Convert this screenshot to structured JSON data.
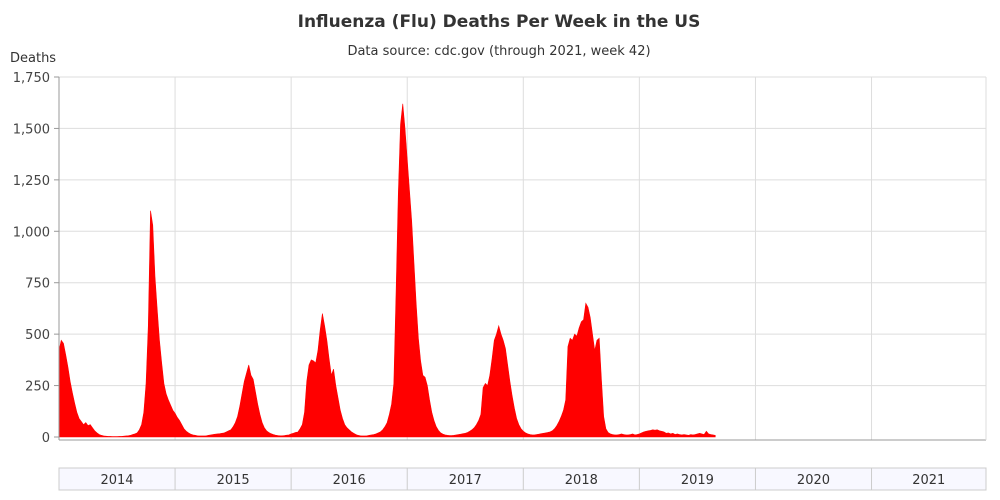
{
  "chart_data": {
    "type": "area",
    "title": "Influenza (Flu) Deaths Per Week in the US",
    "subtitle": "Data source: cdc.gov (through 2021, week 42)",
    "xlabel": "",
    "ylabel": "Deaths",
    "ylim": [
      0,
      1750
    ],
    "yticks": [
      0,
      250,
      500,
      750,
      1000,
      1250,
      1500,
      1750
    ],
    "ytick_labels": [
      "0",
      "250",
      "500",
      "750",
      "1,000",
      "1,250",
      "1,500",
      "1,750"
    ],
    "x_unit": "week",
    "years": [
      "2014",
      "2015",
      "2016",
      "2017",
      "2018",
      "2019",
      "2020",
      "2021"
    ],
    "grid": {
      "horizontal": true,
      "vertical": true
    },
    "series_color": "#ff0000",
    "points": [
      [
        0,
        420
      ],
      [
        1,
        470
      ],
      [
        2,
        455
      ],
      [
        3,
        400
      ],
      [
        4,
        340
      ],
      [
        5,
        270
      ],
      [
        6,
        215
      ],
      [
        7,
        165
      ],
      [
        8,
        120
      ],
      [
        9,
        90
      ],
      [
        10,
        75
      ],
      [
        11,
        60
      ],
      [
        12,
        70
      ],
      [
        13,
        55
      ],
      [
        14,
        60
      ],
      [
        15,
        45
      ],
      [
        16,
        30
      ],
      [
        17,
        20
      ],
      [
        18,
        12
      ],
      [
        19,
        8
      ],
      [
        20,
        5
      ],
      [
        21,
        4
      ],
      [
        22,
        3
      ],
      [
        23,
        3
      ],
      [
        24,
        2
      ],
      [
        25,
        2
      ],
      [
        26,
        2
      ],
      [
        27,
        3
      ],
      [
        28,
        3
      ],
      [
        29,
        4
      ],
      [
        30,
        5
      ],
      [
        31,
        6
      ],
      [
        32,
        8
      ],
      [
        33,
        12
      ],
      [
        34,
        15
      ],
      [
        35,
        20
      ],
      [
        36,
        35
      ],
      [
        37,
        60
      ],
      [
        38,
        120
      ],
      [
        39,
        260
      ],
      [
        40,
        540
      ],
      [
        41,
        1100
      ],
      [
        42,
        1030
      ],
      [
        43,
        780
      ],
      [
        44,
        620
      ],
      [
        45,
        470
      ],
      [
        46,
        360
      ],
      [
        47,
        260
      ],
      [
        48,
        210
      ],
      [
        49,
        180
      ],
      [
        50,
        155
      ],
      [
        51,
        130
      ],
      [
        52,
        115
      ],
      [
        53,
        95
      ],
      [
        54,
        80
      ],
      [
        55,
        60
      ],
      [
        56,
        40
      ],
      [
        57,
        28
      ],
      [
        58,
        20
      ],
      [
        59,
        14
      ],
      [
        60,
        10
      ],
      [
        61,
        8
      ],
      [
        62,
        6
      ],
      [
        63,
        5
      ],
      [
        64,
        5
      ],
      [
        65,
        5
      ],
      [
        66,
        6
      ],
      [
        67,
        8
      ],
      [
        68,
        10
      ],
      [
        69,
        12
      ],
      [
        70,
        14
      ],
      [
        71,
        15
      ],
      [
        72,
        16
      ],
      [
        73,
        18
      ],
      [
        74,
        20
      ],
      [
        75,
        25
      ],
      [
        76,
        30
      ],
      [
        77,
        35
      ],
      [
        78,
        50
      ],
      [
        79,
        70
      ],
      [
        80,
        100
      ],
      [
        81,
        150
      ],
      [
        82,
        210
      ],
      [
        83,
        270
      ],
      [
        84,
        310
      ],
      [
        85,
        350
      ],
      [
        86,
        300
      ],
      [
        87,
        280
      ],
      [
        88,
        220
      ],
      [
        89,
        160
      ],
      [
        90,
        110
      ],
      [
        91,
        70
      ],
      [
        92,
        45
      ],
      [
        93,
        30
      ],
      [
        94,
        22
      ],
      [
        95,
        16
      ],
      [
        96,
        12
      ],
      [
        97,
        9
      ],
      [
        98,
        7
      ],
      [
        99,
        6
      ],
      [
        100,
        6
      ],
      [
        101,
        7
      ],
      [
        102,
        9
      ],
      [
        103,
        10
      ],
      [
        104,
        15
      ],
      [
        105,
        18
      ],
      [
        106,
        22
      ],
      [
        107,
        24
      ],
      [
        108,
        40
      ],
      [
        109,
        60
      ],
      [
        110,
        120
      ],
      [
        111,
        270
      ],
      [
        112,
        350
      ],
      [
        113,
        375
      ],
      [
        114,
        370
      ],
      [
        115,
        360
      ],
      [
        116,
        420
      ],
      [
        117,
        520
      ],
      [
        118,
        600
      ],
      [
        119,
        540
      ],
      [
        120,
        470
      ],
      [
        121,
        380
      ],
      [
        122,
        300
      ],
      [
        123,
        330
      ],
      [
        124,
        250
      ],
      [
        125,
        190
      ],
      [
        126,
        130
      ],
      [
        127,
        90
      ],
      [
        128,
        60
      ],
      [
        129,
        45
      ],
      [
        130,
        35
      ],
      [
        131,
        25
      ],
      [
        132,
        18
      ],
      [
        133,
        12
      ],
      [
        134,
        8
      ],
      [
        135,
        6
      ],
      [
        136,
        5
      ],
      [
        137,
        5
      ],
      [
        138,
        6
      ],
      [
        139,
        8
      ],
      [
        140,
        10
      ],
      [
        141,
        12
      ],
      [
        142,
        15
      ],
      [
        143,
        20
      ],
      [
        144,
        25
      ],
      [
        145,
        35
      ],
      [
        146,
        50
      ],
      [
        147,
        70
      ],
      [
        148,
        110
      ],
      [
        149,
        160
      ],
      [
        150,
        260
      ],
      [
        151,
        700
      ],
      [
        152,
        1180
      ],
      [
        153,
        1520
      ],
      [
        154,
        1620
      ],
      [
        155,
        1500
      ],
      [
        156,
        1350
      ],
      [
        157,
        1200
      ],
      [
        158,
        1050
      ],
      [
        159,
        850
      ],
      [
        160,
        650
      ],
      [
        161,
        480
      ],
      [
        162,
        370
      ],
      [
        163,
        300
      ],
      [
        164,
        290
      ],
      [
        165,
        250
      ],
      [
        166,
        180
      ],
      [
        167,
        120
      ],
      [
        168,
        80
      ],
      [
        169,
        50
      ],
      [
        170,
        32
      ],
      [
        171,
        20
      ],
      [
        172,
        14
      ],
      [
        173,
        10
      ],
      [
        174,
        8
      ],
      [
        175,
        7
      ],
      [
        176,
        7
      ],
      [
        177,
        8
      ],
      [
        178,
        10
      ],
      [
        179,
        12
      ],
      [
        180,
        14
      ],
      [
        181,
        16
      ],
      [
        182,
        18
      ],
      [
        183,
        22
      ],
      [
        184,
        28
      ],
      [
        185,
        35
      ],
      [
        186,
        45
      ],
      [
        187,
        60
      ],
      [
        188,
        80
      ],
      [
        189,
        110
      ],
      [
        190,
        240
      ],
      [
        191,
        260
      ],
      [
        192,
        250
      ],
      [
        193,
        300
      ],
      [
        194,
        380
      ],
      [
        195,
        470
      ],
      [
        196,
        500
      ],
      [
        197,
        540
      ],
      [
        198,
        500
      ],
      [
        199,
        470
      ],
      [
        200,
        430
      ],
      [
        201,
        350
      ],
      [
        202,
        270
      ],
      [
        203,
        200
      ],
      [
        204,
        140
      ],
      [
        205,
        90
      ],
      [
        206,
        60
      ],
      [
        207,
        40
      ],
      [
        208,
        28
      ],
      [
        209,
        20
      ],
      [
        210,
        15
      ],
      [
        211,
        12
      ],
      [
        212,
        10
      ],
      [
        213,
        10
      ],
      [
        214,
        12
      ],
      [
        215,
        14
      ],
      [
        216,
        16
      ],
      [
        217,
        18
      ],
      [
        218,
        20
      ],
      [
        219,
        22
      ],
      [
        220,
        25
      ],
      [
        221,
        30
      ],
      [
        222,
        40
      ],
      [
        223,
        55
      ],
      [
        224,
        75
      ],
      [
        225,
        100
      ],
      [
        226,
        130
      ],
      [
        227,
        180
      ],
      [
        228,
        440
      ],
      [
        229,
        480
      ],
      [
        230,
        470
      ],
      [
        231,
        500
      ],
      [
        232,
        490
      ],
      [
        233,
        530
      ],
      [
        234,
        560
      ],
      [
        235,
        570
      ],
      [
        236,
        650
      ],
      [
        237,
        630
      ],
      [
        238,
        580
      ],
      [
        239,
        500
      ],
      [
        240,
        420
      ],
      [
        241,
        470
      ],
      [
        242,
        480
      ],
      [
        243,
        280
      ],
      [
        244,
        100
      ],
      [
        245,
        40
      ],
      [
        246,
        22
      ],
      [
        247,
        15
      ],
      [
        248,
        12
      ],
      [
        249,
        10
      ],
      [
        250,
        10
      ],
      [
        251,
        12
      ],
      [
        252,
        15
      ],
      [
        253,
        12
      ],
      [
        254,
        10
      ],
      [
        255,
        10
      ],
      [
        256,
        12
      ],
      [
        257,
        15
      ],
      [
        258,
        10
      ],
      [
        259,
        12
      ],
      [
        260,
        15
      ],
      [
        261,
        20
      ],
      [
        262,
        25
      ],
      [
        263,
        28
      ],
      [
        264,
        30
      ],
      [
        265,
        32
      ],
      [
        266,
        35
      ],
      [
        267,
        33
      ],
      [
        268,
        35
      ],
      [
        269,
        30
      ],
      [
        270,
        28
      ],
      [
        271,
        25
      ],
      [
        272,
        18
      ],
      [
        273,
        20
      ],
      [
        274,
        15
      ],
      [
        275,
        18
      ],
      [
        276,
        12
      ],
      [
        277,
        15
      ],
      [
        278,
        12
      ],
      [
        279,
        10
      ],
      [
        280,
        12
      ],
      [
        281,
        10
      ],
      [
        282,
        8
      ],
      [
        283,
        12
      ],
      [
        284,
        10
      ],
      [
        285,
        12
      ],
      [
        286,
        15
      ],
      [
        287,
        18
      ],
      [
        288,
        15
      ],
      [
        289,
        12
      ],
      [
        290,
        28
      ],
      [
        291,
        15
      ],
      [
        292,
        12
      ],
      [
        293,
        10
      ],
      [
        294,
        8
      ]
    ]
  }
}
